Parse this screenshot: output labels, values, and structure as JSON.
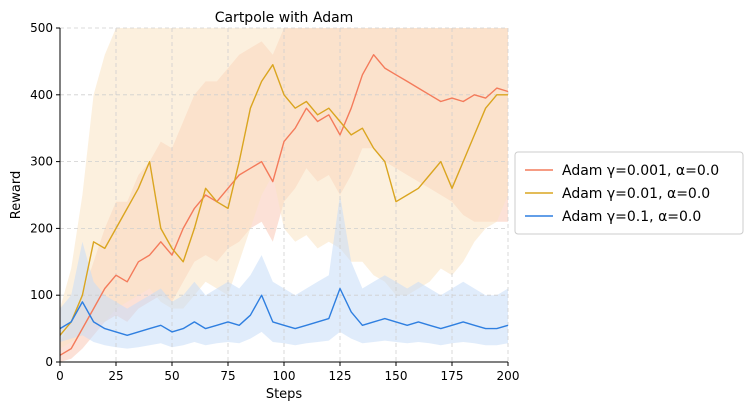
{
  "chart_data": {
    "type": "line",
    "title": "Cartpole with Adam",
    "xlabel": "Steps",
    "ylabel": "Reward",
    "xlim": [
      0,
      200
    ],
    "ylim": [
      0,
      500
    ],
    "xticks": [
      "0",
      "25",
      "50",
      "75",
      "100",
      "125",
      "150",
      "175",
      "200"
    ],
    "yticks": [
      "0",
      "100",
      "200",
      "300",
      "400",
      "500"
    ],
    "grid": true,
    "legend_position": "right-outside",
    "series": [
      {
        "name": "Adam γ=0.001, α=0.0",
        "color": "#f47b5b",
        "band_color": "#f9c9b6",
        "x": [
          0,
          5,
          10,
          15,
          20,
          25,
          30,
          35,
          40,
          45,
          50,
          55,
          60,
          65,
          70,
          75,
          80,
          85,
          90,
          95,
          100,
          105,
          110,
          115,
          120,
          125,
          130,
          135,
          140,
          145,
          150,
          155,
          160,
          165,
          170,
          175,
          180,
          185,
          190,
          195,
          200
        ],
        "y": [
          10,
          20,
          50,
          80,
          110,
          130,
          120,
          150,
          160,
          180,
          160,
          200,
          230,
          250,
          240,
          260,
          280,
          290,
          300,
          270,
          330,
          350,
          380,
          360,
          370,
          340,
          380,
          430,
          460,
          440,
          430,
          420,
          410,
          400,
          390,
          395,
          390,
          400,
          395,
          410,
          405
        ],
        "lower": [
          0,
          5,
          20,
          40,
          60,
          70,
          60,
          80,
          90,
          100,
          90,
          120,
          150,
          160,
          150,
          170,
          180,
          200,
          210,
          180,
          240,
          260,
          290,
          270,
          280,
          250,
          280,
          320,
          320,
          300,
          290,
          280,
          270,
          260,
          250,
          240,
          220,
          210,
          210,
          210,
          210
        ],
        "upper": [
          30,
          60,
          100,
          150,
          200,
          240,
          240,
          280,
          300,
          330,
          320,
          360,
          400,
          420,
          420,
          440,
          460,
          470,
          480,
          460,
          500,
          500,
          500,
          500,
          500,
          500,
          500,
          500,
          500,
          500,
          500,
          500,
          500,
          500,
          500,
          500,
          500,
          500,
          500,
          500,
          500
        ]
      },
      {
        "name": "Adam γ=0.01, α=0.0",
        "color": "#daa520",
        "band_color": "#fae4c2",
        "x": [
          0,
          5,
          10,
          15,
          20,
          25,
          30,
          35,
          40,
          45,
          50,
          55,
          60,
          65,
          70,
          75,
          80,
          85,
          90,
          95,
          100,
          105,
          110,
          115,
          120,
          125,
          130,
          135,
          140,
          145,
          150,
          155,
          160,
          165,
          170,
          175,
          180,
          185,
          190,
          195,
          200
        ],
        "y": [
          40,
          60,
          100,
          180,
          170,
          200,
          230,
          260,
          300,
          200,
          170,
          150,
          200,
          260,
          240,
          230,
          300,
          380,
          420,
          445,
          400,
          380,
          390,
          370,
          380,
          360,
          340,
          350,
          320,
          300,
          240,
          250,
          260,
          280,
          300,
          260,
          300,
          340,
          380,
          400,
          400
        ],
        "lower": [
          20,
          30,
          40,
          60,
          60,
          80,
          90,
          100,
          110,
          90,
          80,
          80,
          100,
          120,
          110,
          100,
          150,
          200,
          250,
          280,
          200,
          180,
          190,
          170,
          180,
          170,
          150,
          150,
          130,
          120,
          100,
          100,
          110,
          120,
          140,
          130,
          150,
          180,
          200,
          210,
          250
        ],
        "upper": [
          80,
          140,
          250,
          400,
          460,
          500,
          500,
          500,
          500,
          500,
          500,
          500,
          500,
          500,
          500,
          500,
          500,
          500,
          500,
          500,
          500,
          500,
          500,
          500,
          500,
          500,
          500,
          500,
          500,
          500,
          500,
          500,
          500,
          500,
          500,
          500,
          500,
          500,
          500,
          500,
          500
        ]
      },
      {
        "name": "Adam γ=0.1, α=0.0",
        "color": "#2f7fe0",
        "band_color": "#c6dcf7",
        "x": [
          0,
          5,
          10,
          15,
          20,
          25,
          30,
          35,
          40,
          45,
          50,
          55,
          60,
          65,
          70,
          75,
          80,
          85,
          90,
          95,
          100,
          105,
          110,
          115,
          120,
          125,
          130,
          135,
          140,
          145,
          150,
          155,
          160,
          165,
          170,
          175,
          180,
          185,
          190,
          195,
          200
        ],
        "y": [
          50,
          60,
          90,
          60,
          50,
          45,
          40,
          45,
          50,
          55,
          45,
          50,
          60,
          50,
          55,
          60,
          55,
          70,
          100,
          60,
          55,
          50,
          55,
          60,
          65,
          110,
          75,
          55,
          60,
          65,
          60,
          55,
          60,
          55,
          50,
          55,
          60,
          55,
          50,
          50,
          55
        ],
        "lower": [
          30,
          35,
          40,
          30,
          25,
          22,
          20,
          22,
          25,
          28,
          22,
          25,
          30,
          25,
          28,
          30,
          28,
          35,
          45,
          30,
          28,
          25,
          28,
          30,
          32,
          45,
          35,
          28,
          30,
          32,
          30,
          28,
          30,
          28,
          25,
          28,
          30,
          28,
          25,
          25,
          28
        ],
        "upper": [
          80,
          100,
          180,
          120,
          100,
          90,
          80,
          90,
          100,
          110,
          90,
          100,
          120,
          100,
          110,
          120,
          110,
          130,
          160,
          120,
          110,
          100,
          110,
          120,
          130,
          250,
          150,
          110,
          120,
          130,
          120,
          110,
          120,
          110,
          100,
          110,
          120,
          110,
          100,
          100,
          110
        ]
      }
    ]
  }
}
